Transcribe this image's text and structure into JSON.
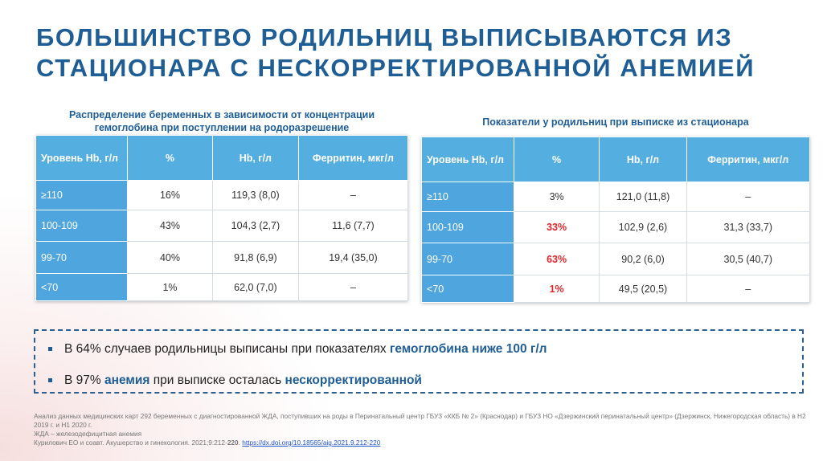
{
  "title": [
    "БОЛЬШИНСТВО РОДИЛЬНИЦ ВЫПИСЫВАЮТСЯ ИЗ",
    "СТАЦИОНАРА С НЕСКОРРЕКТИРОВАННОЙ АНЕМИЕЙ"
  ],
  "table1": {
    "caption": [
      "Распределение беременных в зависимости от концентрации",
      "гемоглобина  при поступлении на родоразрешение"
    ],
    "header": [
      "Уровень Hb, г/л",
      "%",
      "Hb, г/л",
      "Ферритин, мкг/л"
    ],
    "rows": [
      [
        "≥110",
        "16%",
        "119,3 (8,0)",
        "–"
      ],
      [
        "100-109",
        "43%",
        "104,3 (2,7)",
        "11,6 (7,7)"
      ],
      [
        "99-70",
        "40%",
        "91,8 (6,9)",
        "19,4 (35,0)"
      ],
      [
        "<70",
        "1%",
        "62,0 (7,0)",
        "–"
      ]
    ]
  },
  "table2": {
    "caption": [
      "Показатели у родильниц при выписке из стационара"
    ],
    "header": [
      "Уровень Hb, г/л",
      "%",
      "Hb, г/л",
      "Ферритин, мкг/л"
    ],
    "rows": [
      [
        "≥110",
        "3%",
        "121,0 (11,8)",
        "–"
      ],
      [
        "100-109",
        "33%",
        "102,9 (2,6)",
        "31,3 (33,7)"
      ],
      [
        "99-70",
        "63%",
        "90,2 (6,0)",
        "30,5 (40,7)"
      ],
      [
        "<70",
        "1%",
        "49,5 (20,5)",
        "–"
      ]
    ],
    "red_rows": [
      1,
      2,
      3
    ],
    "red_column": 1,
    "red_color": "#e0262b"
  },
  "bullets": [
    [
      "В 64% случаев родильницы выписаны при показателях ",
      "гемоглобина ниже 100 г/л"
    ],
    [
      "В 97% ",
      "анемия",
      " при выписке осталась ",
      "нескорректированной"
    ]
  ],
  "footnote": [
    [
      "Анализ данных медицинских карт 292 беременных с диагностированной ЖДА, поступивших на роды в Перинатальный центр ГБУЗ «ККБ № 2» (Краснодар) и ГБУЗ НО «Дзержинский перинатальный центр» (Дзержинск, Нижегородская область) в Н2 2019 г. и Н1 2020 г."
    ],
    [
      "ЖДА – железодефицитная анемия"
    ],
    [
      "Курилович ЕО и соавт. Акушерство и гинекология. 2021;9:212-",
      "220",
      ". ",
      "https://dx.doi.org/10.18565/aig.2021.9.212-220"
    ]
  ]
}
